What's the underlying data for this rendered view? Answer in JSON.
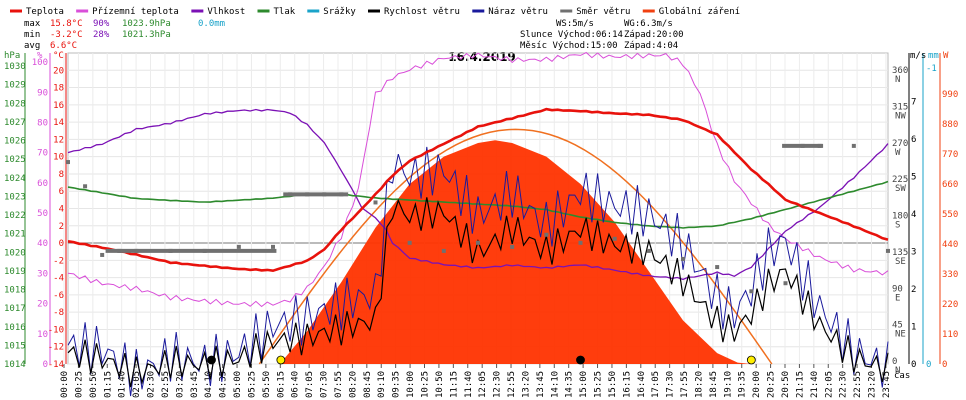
{
  "chart_data": {
    "type": "line",
    "title": "16.4.2019",
    "xlabel": "čas",
    "legend": [
      {
        "key": "teplota",
        "label": "Teplota",
        "color": "#e8120c"
      },
      {
        "key": "prizemni",
        "label": "Přízemní teplota",
        "color": "#d94fd9"
      },
      {
        "key": "vlhkost",
        "label": "Vlhkost",
        "color": "#7b11b5"
      },
      {
        "key": "tlak",
        "label": "Tlak",
        "color": "#2d8a2d"
      },
      {
        "key": "srazky",
        "label": "Srážky",
        "color": "#1aa3c9"
      },
      {
        "key": "vitr",
        "label": "Rychlost větru",
        "color": "#000000"
      },
      {
        "key": "naraz",
        "label": "Náraz větru",
        "color": "#1a1a9c"
      },
      {
        "key": "smer",
        "label": "Směr větru",
        "color": "#707070"
      },
      {
        "key": "zareni",
        "label": "Globální záření",
        "color": "#f04010"
      }
    ],
    "stats": {
      "max_label": "max",
      "max_t": "15.8°C",
      "max_h": "90%",
      "max_p": "1023.9hPa",
      "max_r": "0.0mm",
      "min_label": "min",
      "min_t": "-3.2°C",
      "min_h": "28%",
      "min_p": "1021.3hPa",
      "avg_label": "avg",
      "avg_t": "6.6°C"
    },
    "info": {
      "ws": "WS:5m/s",
      "wg": "WG:6.3m/s",
      "slunce": "Slunce Východ:06:14",
      "slunce_zapad": "Západ:20:00",
      "mesic": "Měsíc  Východ:15:00",
      "mesic_zapad": "Západ:4:04"
    },
    "axis_units": {
      "hpa": "hPa",
      "pct": "%",
      "c": "°C",
      "ms": "m/s",
      "mm": "mm",
      "w": "W"
    },
    "axes": {
      "hpa": [
        1014,
        1015,
        1016,
        1017,
        1018,
        1019,
        1020,
        1021,
        1022,
        1023,
        1024,
        1025,
        1026,
        1027,
        1028,
        1029,
        1030
      ],
      "pct": [
        0,
        10,
        20,
        30,
        40,
        50,
        60,
        70,
        80,
        90,
        100
      ],
      "temp": [
        -14,
        -12,
        -10,
        -8,
        -6,
        -4,
        -2,
        0,
        2,
        4,
        6,
        8,
        10,
        12,
        14,
        16,
        18,
        20
      ],
      "dir": [
        {
          "deg": "0",
          "lab": "N"
        },
        {
          "deg": "45",
          "lab": "NE"
        },
        {
          "deg": "90",
          "lab": "E"
        },
        {
          "deg": "135",
          "lab": "SE"
        },
        {
          "deg": "180",
          "lab": "S"
        },
        {
          "deg": "225",
          "lab": "SW"
        },
        {
          "deg": "270",
          "lab": "W"
        },
        {
          "deg": "315",
          "lab": "NW"
        },
        {
          "deg": "360",
          "lab": "N"
        }
      ],
      "ms": [
        0,
        1,
        2,
        3,
        4,
        5,
        6,
        7
      ],
      "mm": [
        "0",
        "-1"
      ],
      "w": [
        0,
        110,
        220,
        330,
        440,
        550,
        660,
        770,
        880,
        990
      ]
    },
    "ranges": {
      "temp": [
        -14,
        22
      ],
      "hpa": [
        1014,
        1030.7
      ],
      "pct": [
        0,
        103
      ],
      "ms": [
        0,
        8.3
      ],
      "dir": [
        0,
        385
      ],
      "w": [
        0,
        1140
      ]
    },
    "x_ticks": [
      "00:00",
      "00:25",
      "00:50",
      "01:15",
      "01:40",
      "02:05",
      "02:30",
      "02:55",
      "03:20",
      "03:45",
      "04:10",
      "04:35",
      "05:00",
      "05:25",
      "05:50",
      "06:15",
      "06:40",
      "07:05",
      "07:30",
      "07:55",
      "08:20",
      "08:45",
      "09:10",
      "09:35",
      "10:00",
      "10:25",
      "10:50",
      "11:15",
      "11:40",
      "12:05",
      "12:30",
      "12:55",
      "13:20",
      "13:45",
      "14:10",
      "14:35",
      "15:00",
      "15:25",
      "15:50",
      "16:15",
      "16:40",
      "17:05",
      "17:30",
      "17:55",
      "18:20",
      "18:45",
      "19:10",
      "19:35",
      "20:00",
      "20:25",
      "20:50",
      "21:15",
      "21:40",
      "22:05",
      "22:30",
      "22:55",
      "23:20",
      "23:45"
    ],
    "series": {
      "teplota": {
        "x_hours": [
          0,
          1,
          2,
          3,
          4,
          5,
          6,
          7,
          7.5,
          8,
          8.5,
          9,
          9.5,
          10,
          11,
          12,
          13,
          14,
          15,
          16,
          17,
          18,
          19,
          19.5,
          20,
          20.5,
          21,
          22,
          23,
          24
        ],
        "y": [
          0.2,
          -0.5,
          -1.3,
          -2.2,
          -2.6,
          -3,
          -3.2,
          -2.1,
          -0.8,
          1.5,
          3.5,
          5.6,
          7.8,
          9.5,
          11.5,
          13.5,
          14.5,
          15.5,
          15.3,
          15,
          14.8,
          14.2,
          12.5,
          10.5,
          8.5,
          6.8,
          5,
          3.5,
          2,
          0.4
        ]
      },
      "prizemni": {
        "x_hours": [
          0,
          1,
          2,
          3,
          4,
          5,
          6,
          6.5,
          7,
          7.5,
          8,
          8.5,
          9,
          9.5,
          10,
          11,
          12,
          13,
          14,
          15,
          16,
          17,
          17.5,
          18,
          18.5,
          19,
          19.5,
          20,
          20.5,
          21,
          22,
          23,
          24
        ],
        "y": [
          -3.5,
          -4.5,
          -5,
          -6,
          -6.5,
          -7,
          -7.2,
          -6.8,
          -5.5,
          -3,
          0.5,
          6,
          17,
          19,
          20,
          21.5,
          22,
          21.5,
          21.5,
          22,
          21.5,
          21.5,
          21.5,
          20.5,
          17,
          11,
          7,
          4.5,
          2,
          0.5,
          -1.5,
          -2.8,
          -3.2
        ]
      },
      "vlhkost": {
        "x_hours": [
          0,
          1,
          2,
          3,
          4,
          5,
          6,
          6.5,
          7,
          7.5,
          7.8,
          8,
          8.3,
          8.6,
          9,
          9.3,
          9.5,
          10,
          11,
          12,
          13,
          14,
          15,
          16,
          17,
          18,
          19,
          19.5,
          20,
          21,
          22,
          23,
          24
        ],
        "y": [
          70,
          73,
          78,
          80,
          83,
          84,
          84,
          83,
          79,
          73,
          68,
          64,
          58,
          52,
          48,
          45,
          40,
          35,
          33,
          32,
          33,
          32,
          33,
          31,
          29,
          28,
          30,
          29,
          32,
          44,
          52,
          62,
          73
        ]
      },
      "tlak": {
        "x_hours": [
          0,
          1,
          2,
          3,
          4,
          5,
          6,
          7,
          8,
          9,
          10,
          11,
          12,
          13,
          14,
          15,
          16,
          17,
          18,
          19,
          20,
          21,
          22,
          23,
          24
        ],
        "y": [
          1023.5,
          1023.2,
          1022.9,
          1022.8,
          1022.7,
          1022.8,
          1022.9,
          1023.1,
          1023.1,
          1022.9,
          1022.8,
          1022.7,
          1022.6,
          1022.5,
          1022.3,
          1021.9,
          1021.6,
          1021.4,
          1021.3,
          1021.4,
          1021.8,
          1022.3,
          1022.8,
          1023.3,
          1023.8
        ]
      },
      "vitr": {
        "x_hours": [
          0,
          1,
          2,
          3,
          4,
          5,
          6,
          7,
          8,
          9,
          9.5,
          10,
          11,
          12,
          13,
          14,
          15,
          16,
          17,
          18,
          18.5,
          19,
          19.5,
          20,
          20.5,
          21,
          22,
          23,
          24
        ],
        "y": [
          0.3,
          0.4,
          0.2,
          0.5,
          0.3,
          0.2,
          0.4,
          0.3,
          0.5,
          0.8,
          4,
          3.8,
          4.2,
          3.3,
          4.1,
          3.4,
          3.8,
          3.1,
          2.7,
          1.8,
          1.2,
          0.7,
          0.5,
          1.1,
          2,
          2.5,
          1.3,
          0.6,
          0.3
        ]
      },
      "naraz": {
        "x_hours": [
          0,
          1,
          2,
          3,
          4,
          5,
          6,
          7,
          8,
          9,
          9.5,
          10,
          11,
          12,
          13,
          14,
          15,
          16,
          17,
          18,
          18.5,
          19,
          19.5,
          20,
          20.5,
          21,
          22,
          23,
          24
        ],
        "y": [
          0.5,
          0.8,
          0.4,
          0.9,
          0.5,
          0.4,
          0.7,
          0.6,
          0.9,
          1.3,
          5,
          4.8,
          5.4,
          4.5,
          5.3,
          4.3,
          4.9,
          4.1,
          3.5,
          2.5,
          1.8,
          1.1,
          0.8,
          1.6,
          2.8,
          3.3,
          1.9,
          1,
          0.6
        ]
      },
      "zareni": {
        "x_hours": [
          6.2,
          7,
          8,
          9,
          10,
          11,
          12,
          12.5,
          13,
          14,
          15,
          16,
          17,
          18,
          19,
          19.6,
          20
        ],
        "y": [
          0,
          120,
          300,
          500,
          660,
          760,
          810,
          820,
          810,
          760,
          660,
          520,
          340,
          160,
          40,
          5,
          0
        ]
      },
      "smer": {
        "x_hours": [
          0,
          0.5,
          1,
          1.5,
          2,
          3,
          4,
          5,
          6,
          6.5,
          7,
          7.5,
          8,
          9,
          10,
          11,
          12,
          13,
          14,
          15,
          16,
          17,
          18,
          19,
          20,
          21,
          21.5,
          22,
          23,
          24
        ],
        "y": [
          250,
          220,
          135,
          140,
          140,
          140,
          140,
          145,
          145,
          210,
          210,
          210,
          210,
          200,
          150,
          140,
          150,
          145,
          160,
          150,
          155,
          140,
          130,
          120,
          90,
          100,
          270,
          270,
          270,
          140
        ]
      }
    }
  }
}
